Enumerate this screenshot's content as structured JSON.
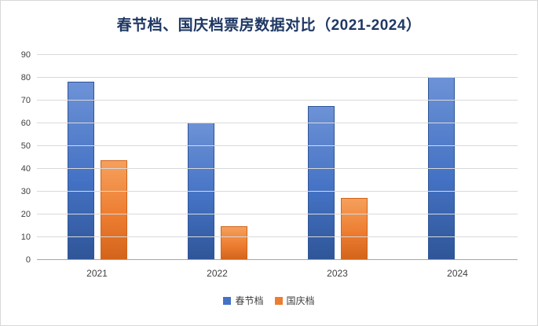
{
  "chart_data": {
    "type": "bar",
    "title": "春节档、国庆档票房数据对比（2021-2024）",
    "categories": [
      "2021",
      "2022",
      "2023",
      "2024"
    ],
    "series": [
      {
        "name": "春节档",
        "color": "#4472c4",
        "color_light": "#6d92d6",
        "color_dark": "#2f5597",
        "values": [
          78.4,
          60.4,
          67.6,
          80.2
        ]
      },
      {
        "name": "国庆档",
        "color": "#ed7d31",
        "color_light": "#f5a05c",
        "color_dark": "#d2631a",
        "values": [
          43.9,
          15.0,
          27.3,
          null
        ]
      }
    ],
    "ylim": [
      0,
      90
    ],
    "ytick_step": 10,
    "yticks": [
      0,
      10,
      20,
      30,
      40,
      50,
      60,
      70,
      80,
      90
    ],
    "grid": true,
    "legend_position": "bottom",
    "colors": {
      "title_text": "#1f3864",
      "axis_text": "#404040",
      "gridline": "#d9d9d9",
      "axis_line": "#a6a6a6",
      "background": "#ffffff"
    }
  }
}
